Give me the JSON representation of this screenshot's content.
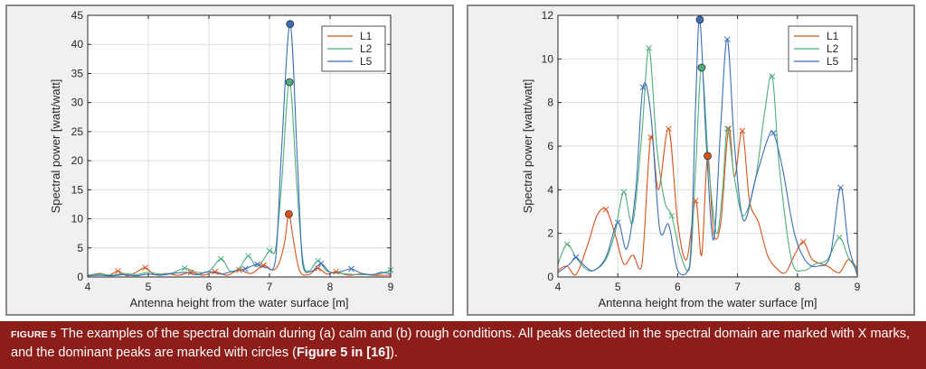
{
  "caption": {
    "label": "FIGURE 5",
    "text": "The examples of the spectral domain during (a) calm and (b) rough conditions. All peaks detected in the spectral domain are marked with X marks, and the dominant peaks are marked with circles (",
    "ref": "Figure 5 in [16]",
    "end": ")."
  },
  "colors": {
    "L1": "#d95319",
    "L2": "#4fae7d",
    "L5": "#3a6fb8"
  },
  "chart_data": [
    {
      "type": "line",
      "panel": "a",
      "xlabel": "Antenna height from the water surface [m]",
      "ylabel": "Spectral power [watt/watt]",
      "xlim": [
        4,
        9
      ],
      "ylim": [
        0,
        45
      ],
      "xticks": [
        4,
        5,
        6,
        7,
        8,
        9
      ],
      "yticks": [
        0,
        5,
        10,
        15,
        20,
        25,
        30,
        35,
        40,
        45
      ],
      "grid": true,
      "legend": "top-right",
      "series": [
        {
          "name": "L1",
          "points": [
            [
              4.0,
              0.2
            ],
            [
              4.2,
              0.6
            ],
            [
              4.35,
              0.3
            ],
            [
              4.5,
              1.0
            ],
            [
              4.65,
              0.2
            ],
            [
              4.8,
              0.8
            ],
            [
              4.95,
              1.6
            ],
            [
              5.1,
              0.4
            ],
            [
              5.3,
              0.6
            ],
            [
              5.5,
              0.3
            ],
            [
              5.7,
              0.8
            ],
            [
              5.9,
              0.3
            ],
            [
              6.1,
              0.9
            ],
            [
              6.3,
              0.3
            ],
            [
              6.5,
              1.2
            ],
            [
              6.7,
              0.6
            ],
            [
              6.9,
              2.0
            ],
            [
              7.05,
              1.2
            ],
            [
              7.15,
              2.2
            ],
            [
              7.25,
              6.0
            ],
            [
              7.32,
              10.8
            ],
            [
              7.4,
              6.0
            ],
            [
              7.5,
              1.0
            ],
            [
              7.65,
              0.4
            ],
            [
              7.8,
              1.5
            ],
            [
              7.95,
              0.5
            ],
            [
              8.1,
              0.9
            ],
            [
              8.3,
              0.3
            ],
            [
              8.5,
              0.5
            ],
            [
              8.7,
              0.3
            ],
            [
              9.0,
              0.3
            ]
          ],
          "peaks": [
            [
              4.5,
              1.0
            ],
            [
              4.95,
              1.6
            ],
            [
              5.7,
              0.8
            ],
            [
              6.1,
              0.9
            ],
            [
              6.5,
              1.2
            ],
            [
              6.9,
              2.0
            ],
            [
              7.8,
              1.5
            ],
            [
              8.1,
              0.9
            ]
          ],
          "dominant": [
            7.32,
            10.8
          ]
        },
        {
          "name": "L2",
          "points": [
            [
              4.0,
              0.3
            ],
            [
              4.2,
              0.5
            ],
            [
              4.4,
              0.3
            ],
            [
              4.6,
              0.6
            ],
            [
              4.8,
              0.4
            ],
            [
              5.0,
              0.8
            ],
            [
              5.2,
              0.5
            ],
            [
              5.4,
              0.7
            ],
            [
              5.6,
              1.5
            ],
            [
              5.8,
              0.8
            ],
            [
              6.0,
              1.0
            ],
            [
              6.2,
              3.1
            ],
            [
              6.35,
              1.0
            ],
            [
              6.5,
              1.5
            ],
            [
              6.65,
              3.6
            ],
            [
              6.8,
              1.8
            ],
            [
              7.0,
              4.5
            ],
            [
              7.1,
              4.8
            ],
            [
              7.2,
              16.0
            ],
            [
              7.33,
              33.5
            ],
            [
              7.45,
              16.0
            ],
            [
              7.55,
              3.0
            ],
            [
              7.65,
              1.0
            ],
            [
              7.8,
              2.8
            ],
            [
              7.95,
              1.0
            ],
            [
              8.2,
              0.6
            ],
            [
              8.5,
              0.4
            ],
            [
              8.8,
              0.5
            ],
            [
              9.0,
              1.2
            ]
          ],
          "peaks": [
            [
              5.6,
              1.5
            ],
            [
              6.2,
              3.1
            ],
            [
              6.65,
              3.6
            ],
            [
              7.0,
              4.5
            ],
            [
              7.8,
              2.8
            ],
            [
              9.0,
              1.2
            ]
          ],
          "dominant": [
            7.33,
            33.5
          ]
        },
        {
          "name": "L5",
          "points": [
            [
              4.0,
              0.2
            ],
            [
              4.2,
              0.3
            ],
            [
              4.4,
              0.2
            ],
            [
              4.6,
              0.4
            ],
            [
              4.8,
              0.2
            ],
            [
              5.0,
              0.5
            ],
            [
              5.2,
              0.3
            ],
            [
              5.4,
              0.6
            ],
            [
              5.6,
              0.8
            ],
            [
              5.8,
              0.4
            ],
            [
              6.0,
              0.9
            ],
            [
              6.2,
              0.5
            ],
            [
              6.4,
              1.0
            ],
            [
              6.6,
              1.4
            ],
            [
              6.8,
              2.2
            ],
            [
              6.95,
              1.6
            ],
            [
              7.1,
              3.0
            ],
            [
              7.2,
              22.0
            ],
            [
              7.34,
              43.5
            ],
            [
              7.46,
              20.0
            ],
            [
              7.55,
              2.0
            ],
            [
              7.7,
              1.0
            ],
            [
              7.85,
              2.3
            ],
            [
              8.0,
              0.8
            ],
            [
              8.2,
              1.0
            ],
            [
              8.35,
              1.4
            ],
            [
              8.5,
              0.7
            ],
            [
              8.7,
              0.4
            ],
            [
              8.85,
              0.8
            ],
            [
              9.0,
              0.5
            ]
          ],
          "peaks": [
            [
              6.6,
              1.4
            ],
            [
              6.8,
              2.2
            ],
            [
              7.85,
              2.3
            ],
            [
              8.35,
              1.4
            ]
          ],
          "dominant": [
            7.34,
            43.5
          ]
        }
      ]
    },
    {
      "type": "line",
      "panel": "b",
      "xlabel": "Antenna height from the water surface [m]",
      "ylabel": "Spectral power [watt/watt]",
      "xlim": [
        4,
        9
      ],
      "ylim": [
        0,
        12
      ],
      "xticks": [
        4,
        5,
        6,
        7,
        8,
        9
      ],
      "yticks": [
        0,
        2,
        4,
        6,
        8,
        10,
        12
      ],
      "grid": true,
      "legend": "top-right",
      "series": [
        {
          "name": "L1",
          "points": [
            [
              4.0,
              0.3
            ],
            [
              4.15,
              0.5
            ],
            [
              4.3,
              0.1
            ],
            [
              4.5,
              1.5
            ],
            [
              4.65,
              2.8
            ],
            [
              4.8,
              3.1
            ],
            [
              4.95,
              2.0
            ],
            [
              5.1,
              0.6
            ],
            [
              5.25,
              1.0
            ],
            [
              5.4,
              0.5
            ],
            [
              5.55,
              6.4
            ],
            [
              5.68,
              4.0
            ],
            [
              5.85,
              6.8
            ],
            [
              6.0,
              2.5
            ],
            [
              6.15,
              0.8
            ],
            [
              6.3,
              3.5
            ],
            [
              6.4,
              1.0
            ],
            [
              6.5,
              5.55
            ],
            [
              6.6,
              2.0
            ],
            [
              6.72,
              2.5
            ],
            [
              6.85,
              6.8
            ],
            [
              6.95,
              4.6
            ],
            [
              7.08,
              6.7
            ],
            [
              7.2,
              3.5
            ],
            [
              7.35,
              2.5
            ],
            [
              7.5,
              1.0
            ],
            [
              7.65,
              0.4
            ],
            [
              7.8,
              0.2
            ],
            [
              7.95,
              1.0
            ],
            [
              8.1,
              1.6
            ],
            [
              8.25,
              0.8
            ],
            [
              8.5,
              0.5
            ],
            [
              8.7,
              0.2
            ],
            [
              8.85,
              0.8
            ],
            [
              9.0,
              0.4
            ]
          ],
          "peaks": [
            [
              4.8,
              3.1
            ],
            [
              5.55,
              6.4
            ],
            [
              5.85,
              6.8
            ],
            [
              6.3,
              3.5
            ],
            [
              6.85,
              6.8
            ],
            [
              7.08,
              6.7
            ],
            [
              8.1,
              1.6
            ]
          ],
          "dominant": [
            6.5,
            5.55
          ]
        },
        {
          "name": "L2",
          "points": [
            [
              4.0,
              0.6
            ],
            [
              4.15,
              1.5
            ],
            [
              4.3,
              0.9
            ],
            [
              4.45,
              0.4
            ],
            [
              4.6,
              0.3
            ],
            [
              4.8,
              0.8
            ],
            [
              4.95,
              2.0
            ],
            [
              5.1,
              3.9
            ],
            [
              5.25,
              2.5
            ],
            [
              5.4,
              6.5
            ],
            [
              5.52,
              10.5
            ],
            [
              5.65,
              6.0
            ],
            [
              5.78,
              3.5
            ],
            [
              5.9,
              2.8
            ],
            [
              6.05,
              1.0
            ],
            [
              6.2,
              0.4
            ],
            [
              6.3,
              5.0
            ],
            [
              6.4,
              9.6
            ],
            [
              6.52,
              5.0
            ],
            [
              6.65,
              2.0
            ],
            [
              6.75,
              4.0
            ],
            [
              6.83,
              6.8
            ],
            [
              6.95,
              4.5
            ],
            [
              7.1,
              2.8
            ],
            [
              7.3,
              4.5
            ],
            [
              7.45,
              7.5
            ],
            [
              7.58,
              9.2
            ],
            [
              7.7,
              5.0
            ],
            [
              7.9,
              0.8
            ],
            [
              8.1,
              0.3
            ],
            [
              8.3,
              0.6
            ],
            [
              8.5,
              0.8
            ],
            [
              8.7,
              1.8
            ],
            [
              8.85,
              0.9
            ],
            [
              9.0,
              0.3
            ]
          ],
          "peaks": [
            [
              4.15,
              1.5
            ],
            [
              5.1,
              3.9
            ],
            [
              5.52,
              10.5
            ],
            [
              5.9,
              2.8
            ],
            [
              6.83,
              6.8
            ],
            [
              7.58,
              9.2
            ],
            [
              8.7,
              1.8
            ]
          ],
          "dominant": [
            6.4,
            9.6
          ]
        },
        {
          "name": "L5",
          "points": [
            [
              4.0,
              0.2
            ],
            [
              4.2,
              0.6
            ],
            [
              4.3,
              0.9
            ],
            [
              4.45,
              0.5
            ],
            [
              4.6,
              0.3
            ],
            [
              4.8,
              0.9
            ],
            [
              5.0,
              2.5
            ],
            [
              5.15,
              1.3
            ],
            [
              5.3,
              4.0
            ],
            [
              5.42,
              8.7
            ],
            [
              5.55,
              7.5
            ],
            [
              5.7,
              2.2
            ],
            [
              5.85,
              2.4
            ],
            [
              6.0,
              0.3
            ],
            [
              6.2,
              0.5
            ],
            [
              6.3,
              8.0
            ],
            [
              6.37,
              11.8
            ],
            [
              6.48,
              6.0
            ],
            [
              6.6,
              1.7
            ],
            [
              6.72,
              7.0
            ],
            [
              6.83,
              10.9
            ],
            [
              6.95,
              6.0
            ],
            [
              7.1,
              2.6
            ],
            [
              7.3,
              4.5
            ],
            [
              7.5,
              6.3
            ],
            [
              7.6,
              6.6
            ],
            [
              7.75,
              5.0
            ],
            [
              7.95,
              2.0
            ],
            [
              8.15,
              0.7
            ],
            [
              8.35,
              0.5
            ],
            [
              8.55,
              1.0
            ],
            [
              8.72,
              4.1
            ],
            [
              8.85,
              1.5
            ],
            [
              9.0,
              0.1
            ]
          ],
          "peaks": [
            [
              4.3,
              0.9
            ],
            [
              5.0,
              2.5
            ],
            [
              5.42,
              8.7
            ],
            [
              6.83,
              10.9
            ],
            [
              7.6,
              6.6
            ],
            [
              8.72,
              4.1
            ]
          ],
          "dominant": [
            6.37,
            11.8
          ]
        }
      ]
    }
  ]
}
